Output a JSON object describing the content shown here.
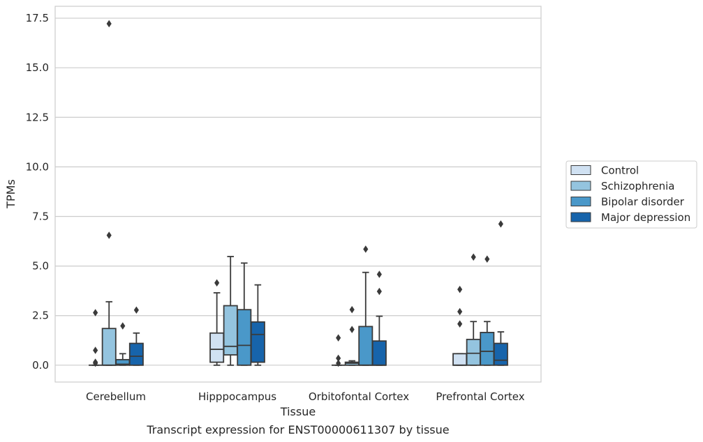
{
  "chart_data": {
    "type": "box",
    "caption": "Transcript expression for ENST00000611307 by tissue",
    "xlabel": "Tissue",
    "ylabel": "TPMs",
    "ylim": [
      -0.85,
      18.1
    ],
    "yticks": [
      0.0,
      2.5,
      5.0,
      7.5,
      10.0,
      12.5,
      15.0,
      17.5
    ],
    "ytick_labels": [
      "0.0",
      "2.5",
      "5.0",
      "7.5",
      "10.0",
      "12.5",
      "15.0",
      "17.5"
    ],
    "grid": "horizontal",
    "legend_position": "outside-right",
    "categories": [
      "Cerebellum",
      "Hipppocampus",
      "Orbitofontal Cortex",
      "Prefrontal Cortex"
    ],
    "series": [
      {
        "name": "Control",
        "color": "#d0e1f2",
        "boxes": [
          {
            "q1": 0.0,
            "median": 0.0,
            "q3": 0.0,
            "whisker_low": 0.0,
            "whisker_high": 0.0,
            "outliers": [
              0.1,
              0.15,
              0.75,
              2.65
            ]
          },
          {
            "q1": 0.15,
            "median": 0.8,
            "q3": 1.62,
            "whisker_low": 0.0,
            "whisker_high": 3.65,
            "outliers": [
              4.15
            ]
          },
          {
            "q1": 0.0,
            "median": 0.0,
            "q3": 0.0,
            "whisker_low": 0.0,
            "whisker_high": 0.0,
            "outliers": [
              0.1,
              0.35,
              1.38
            ]
          },
          {
            "q1": 0.0,
            "median": 0.0,
            "q3": 0.58,
            "whisker_low": 0.0,
            "whisker_high": 0.58,
            "outliers": [
              2.08,
              2.7,
              3.82
            ]
          }
        ]
      },
      {
        "name": "Schizophrenia",
        "color": "#94c4df",
        "boxes": [
          {
            "q1": 0.0,
            "median": 0.0,
            "q3": 1.85,
            "whisker_low": 0.0,
            "whisker_high": 3.2,
            "outliers": [
              6.55,
              17.22
            ]
          },
          {
            "q1": 0.52,
            "median": 0.95,
            "q3": 3.0,
            "whisker_low": 0.0,
            "whisker_high": 5.48,
            "outliers": []
          },
          {
            "q1": 0.0,
            "median": 0.1,
            "q3": 0.15,
            "whisker_low": 0.0,
            "whisker_high": 0.22,
            "outliers": [
              1.8,
              2.8
            ]
          },
          {
            "q1": 0.0,
            "median": 0.6,
            "q3": 1.3,
            "whisker_low": 0.0,
            "whisker_high": 2.2,
            "outliers": [
              5.45
            ]
          }
        ]
      },
      {
        "name": "Bipolar disorder",
        "color": "#4a98c9",
        "boxes": [
          {
            "q1": 0.0,
            "median": 0.05,
            "q3": 0.28,
            "whisker_low": 0.0,
            "whisker_high": 0.58,
            "outliers": [
              1.98
            ]
          },
          {
            "q1": 0.0,
            "median": 1.0,
            "q3": 2.8,
            "whisker_low": 0.0,
            "whisker_high": 5.15,
            "outliers": []
          },
          {
            "q1": 0.0,
            "median": 0.0,
            "q3": 1.95,
            "whisker_low": 0.0,
            "whisker_high": 4.68,
            "outliers": [
              5.85
            ]
          },
          {
            "q1": 0.0,
            "median": 0.7,
            "q3": 1.65,
            "whisker_low": 0.0,
            "whisker_high": 2.2,
            "outliers": [
              5.35
            ]
          }
        ]
      },
      {
        "name": "Major depression",
        "color": "#1764ab",
        "boxes": [
          {
            "q1": 0.0,
            "median": 0.45,
            "q3": 1.1,
            "whisker_low": 0.0,
            "whisker_high": 1.62,
            "outliers": [
              2.78
            ]
          },
          {
            "q1": 0.15,
            "median": 1.55,
            "q3": 2.18,
            "whisker_low": 0.0,
            "whisker_high": 4.05,
            "outliers": []
          },
          {
            "q1": 0.0,
            "median": 0.0,
            "q3": 1.22,
            "whisker_low": 0.0,
            "whisker_high": 2.47,
            "outliers": [
              3.72,
              4.58
            ]
          },
          {
            "q1": 0.0,
            "median": 0.25,
            "q3": 1.1,
            "whisker_low": 0.0,
            "whisker_high": 1.68,
            "outliers": [
              7.12
            ]
          }
        ]
      }
    ]
  }
}
